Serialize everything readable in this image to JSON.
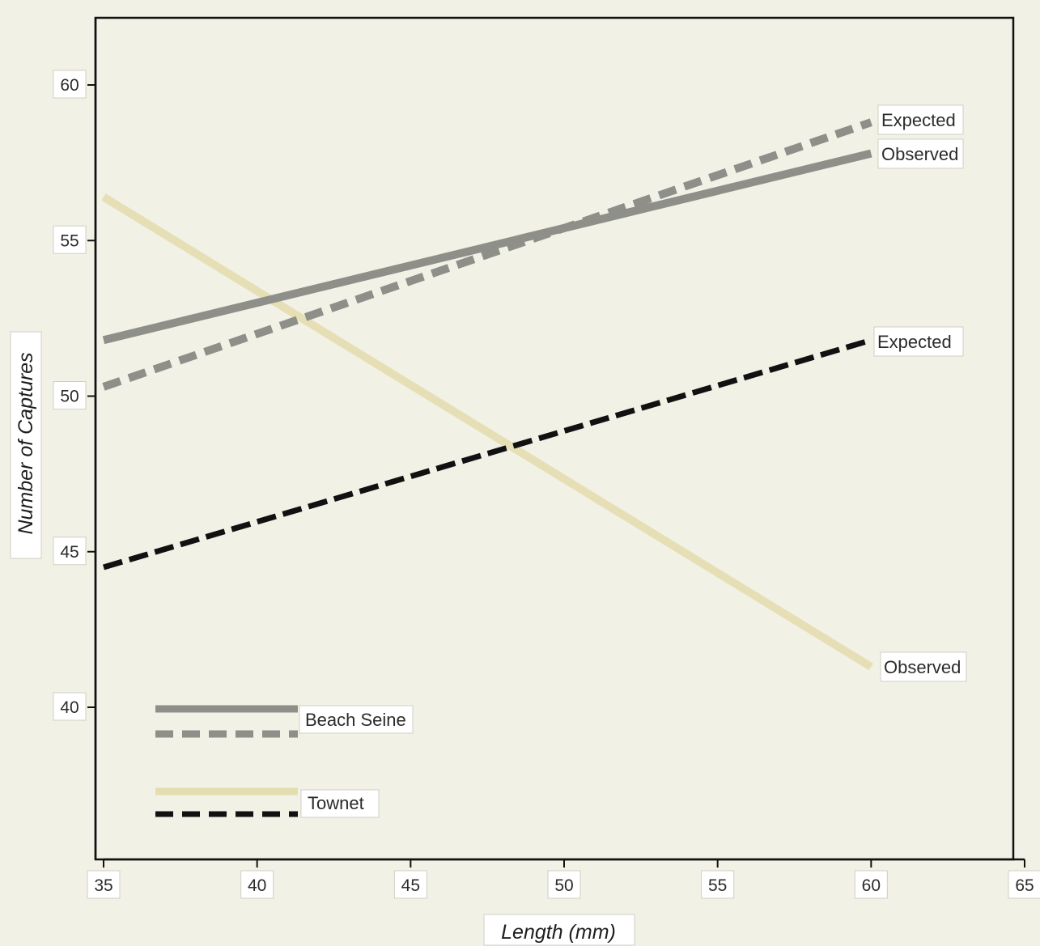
{
  "chart_data": {
    "type": "line",
    "title": "",
    "xlabel": "Length (mm)",
    "ylabel": "Number of Captures",
    "xlim": [
      35,
      65
    ],
    "ylim": [
      35,
      62
    ],
    "x_ticks": [
      "35",
      "40",
      "45",
      "50",
      "55",
      "60",
      "65"
    ],
    "y_ticks": [
      "40",
      "45",
      "50",
      "55",
      "60"
    ],
    "grid": false,
    "series": [
      {
        "gear": "Beach Seine",
        "name": "Observed",
        "style": "solid",
        "color": "#8f8f8a",
        "x": [
          35,
          60
        ],
        "y": [
          51.8,
          57.8
        ]
      },
      {
        "gear": "Beach Seine",
        "name": "Expected",
        "style": "dashed",
        "color": "#8f8f8a",
        "x": [
          35,
          60
        ],
        "y": [
          50.3,
          58.8
        ]
      },
      {
        "gear": "Townet",
        "name": "Observed",
        "style": "solid",
        "color": "#e4ddb0",
        "x": [
          35,
          60
        ],
        "y": [
          56.4,
          41.3
        ]
      },
      {
        "gear": "Townet",
        "name": "Expected",
        "style": "dashed",
        "color": "#111111",
        "x": [
          35,
          60
        ],
        "y": [
          44.5,
          51.8
        ]
      }
    ],
    "legend": {
      "placement": "bottom-left",
      "groups": [
        "Beach Seine",
        "Townet"
      ]
    }
  }
}
